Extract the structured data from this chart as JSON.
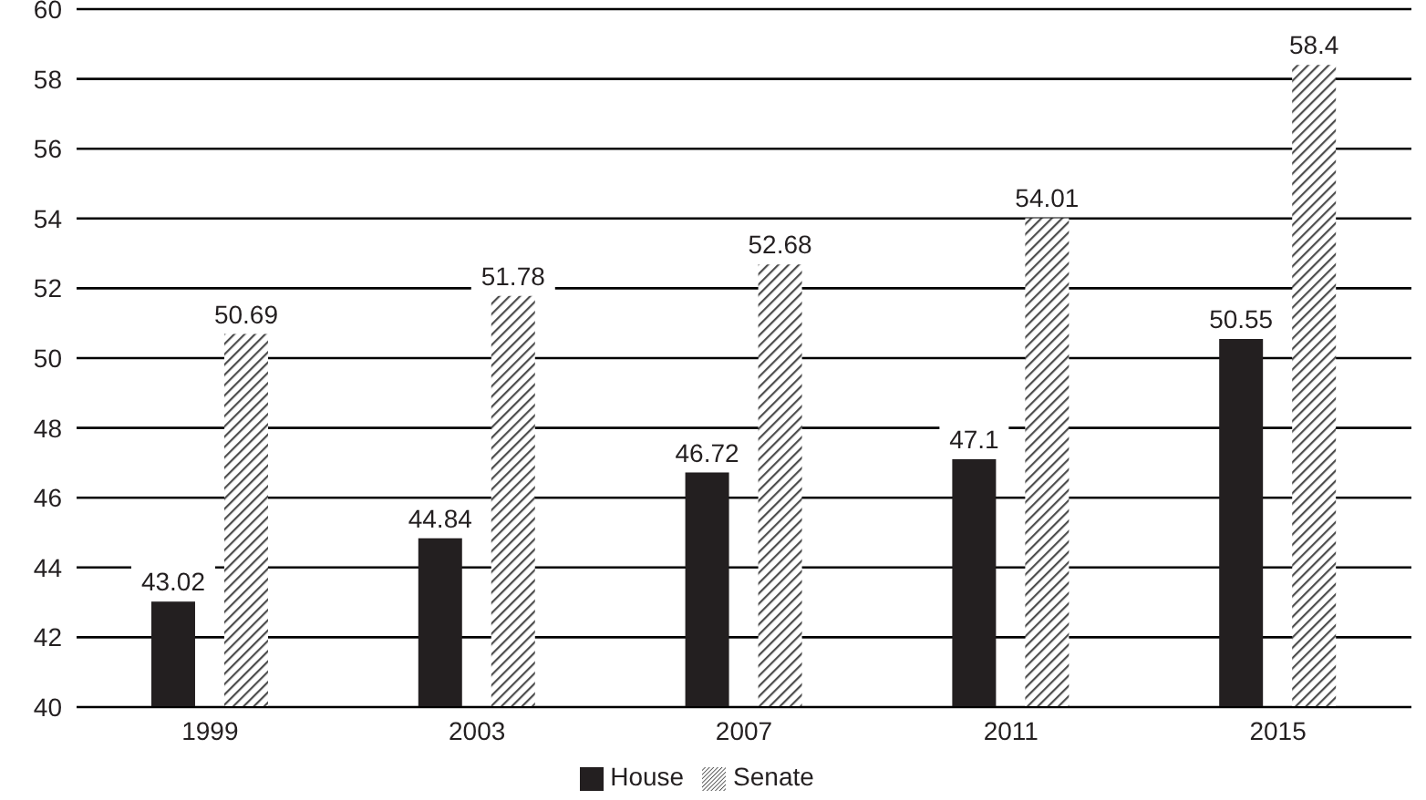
{
  "chart_data": {
    "type": "bar",
    "categories": [
      "1999",
      "2003",
      "2007",
      "2011",
      "2015"
    ],
    "series": [
      {
        "name": "House",
        "color": "#231f20",
        "values": [
          43.02,
          44.84,
          46.72,
          47.1,
          50.55
        ]
      },
      {
        "name": "Senate",
        "color": "#4d4d4d",
        "values": [
          50.69,
          51.78,
          52.68,
          54.01,
          58.4
        ]
      }
    ],
    "ylim": [
      40,
      60
    ],
    "yticks": [
      40,
      42,
      44,
      46,
      48,
      50,
      52,
      54,
      56,
      58,
      60
    ],
    "grid": "y",
    "legend": "bottom",
    "data_labels": true
  }
}
